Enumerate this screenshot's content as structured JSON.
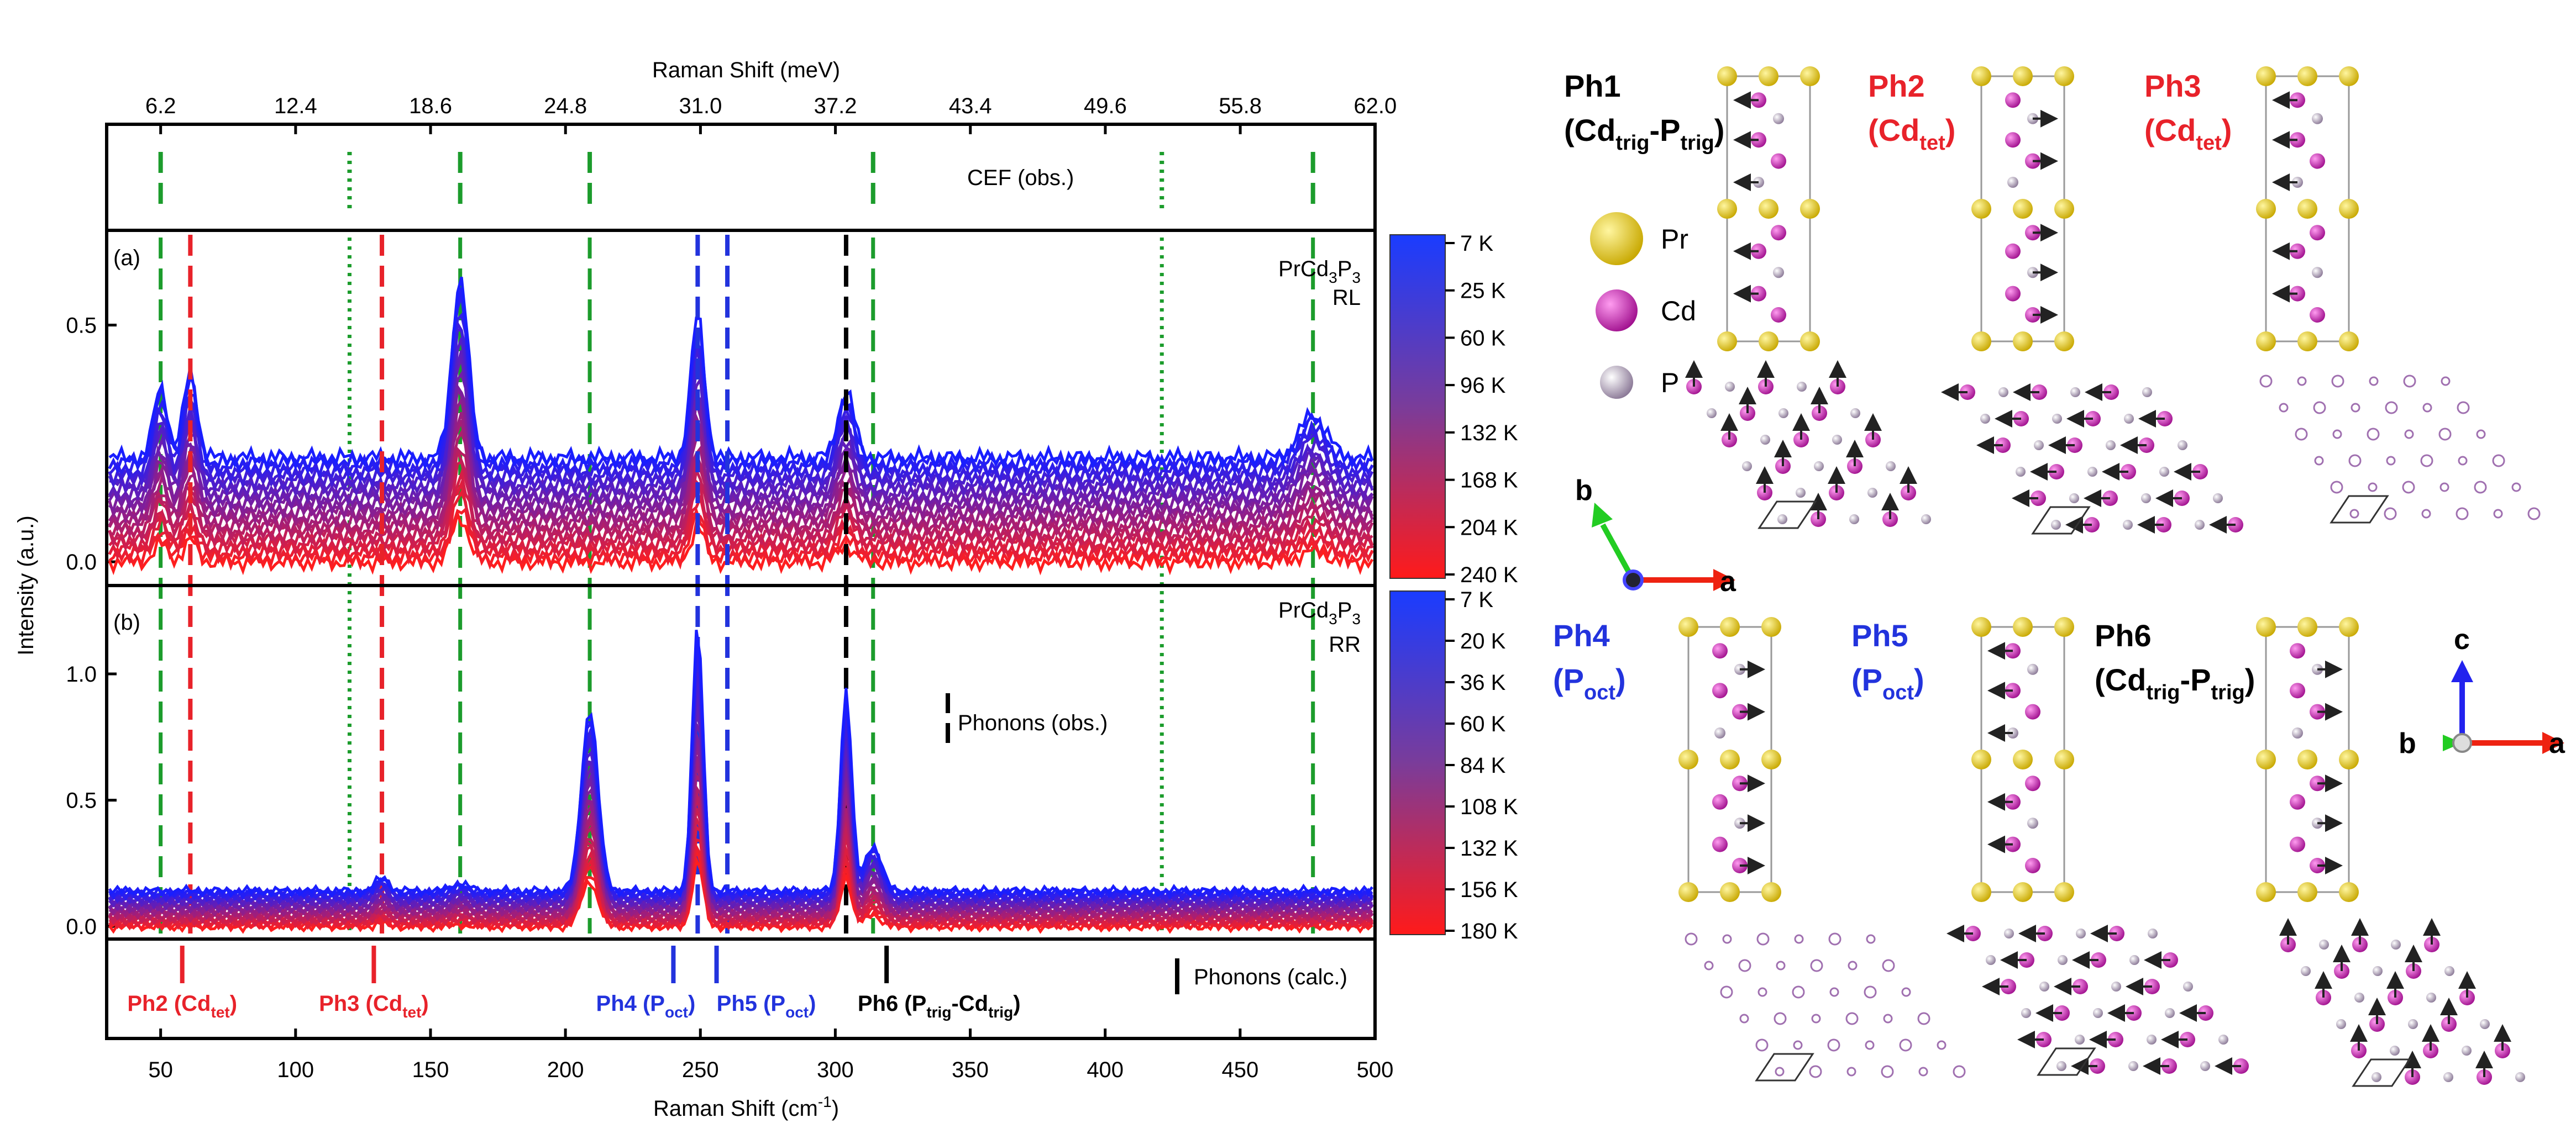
{
  "chart_data": {
    "type": "line",
    "top_axis": {
      "label": "Raman Shift (meV)",
      "ticks": [
        "6.2",
        "12.4",
        "18.6",
        "24.8",
        "31.0",
        "37.2",
        "43.4",
        "49.6",
        "55.8",
        "62.0"
      ]
    },
    "bottom_axis": {
      "label": "Raman Shift (cm",
      "label_sup": "-1",
      "label_end": ")",
      "ticks": [
        50,
        100,
        150,
        200,
        250,
        300,
        350,
        400,
        450,
        500
      ],
      "xlim": [
        30,
        500
      ]
    },
    "ylabel": "Intensity (a.u.)",
    "cef_label": "CEF (obs.)",
    "cef_lines": [
      {
        "x": 50,
        "style": "dashed"
      },
      {
        "x": 120,
        "style": "dotted"
      },
      {
        "x": 161,
        "style": "dashed"
      },
      {
        "x": 209,
        "style": "dashed"
      },
      {
        "x": 314,
        "style": "dashed"
      },
      {
        "x": 421,
        "style": "dotted"
      },
      {
        "x": 477,
        "style": "dashed"
      }
    ],
    "phonon_obs_lines": [
      {
        "x": 61,
        "color": "#e8222a"
      },
      {
        "x": 132,
        "color": "#e8222a"
      },
      {
        "x": 249,
        "color": "#2233dd"
      },
      {
        "x": 260,
        "color": "#2233dd"
      },
      {
        "x": 304,
        "color": "#000000"
      }
    ],
    "panel_a": {
      "tag": "(a)",
      "sample": "PrCd",
      "sample_sub": "3",
      "sample_p": "P",
      "sample_sub2": "3",
      "sample_config": "RL",
      "yticks": [
        "0.0",
        "0.5"
      ],
      "ylim": [
        -0.05,
        0.7
      ],
      "peaks": [
        {
          "x": 50,
          "height": 0.15,
          "width": 2.5
        },
        {
          "x": 61,
          "height": 0.18,
          "width": 2.5
        },
        {
          "x": 161,
          "height": 0.38,
          "width": 3
        },
        {
          "x": 249,
          "height": 0.3,
          "width": 2.5
        },
        {
          "x": 304,
          "height": 0.14,
          "width": 3
        },
        {
          "x": 477,
          "height": 0.09,
          "width": 5
        }
      ],
      "colorbar": {
        "labels": [
          "7 K",
          "25 K",
          "60 K",
          "96 K",
          "132 K",
          "168 K",
          "204 K",
          "240 K"
        ]
      }
    },
    "panel_b": {
      "tag": "(b)",
      "sample": "PrCd",
      "sample_sub": "3",
      "sample_p": "P",
      "sample_sub2": "3",
      "sample_config": "RR",
      "yticks": [
        "0.0",
        "0.5",
        "1.0"
      ],
      "ylim": [
        -0.05,
        1.35
      ],
      "phonon_obs_label": "Phonons (obs.)",
      "peaks": [
        {
          "x": 132,
          "height": 0.05,
          "width": 2.5
        },
        {
          "x": 161,
          "height": 0.03,
          "width": 3
        },
        {
          "x": 209,
          "height": 0.72,
          "width": 3
        },
        {
          "x": 249,
          "height": 1.05,
          "width": 2
        },
        {
          "x": 304,
          "height": 0.8,
          "width": 2
        },
        {
          "x": 314,
          "height": 0.18,
          "width": 3
        }
      ],
      "colorbar": {
        "labels": [
          "7 K",
          "20 K",
          "36 K",
          "60 K",
          "84 K",
          "108 K",
          "132 K",
          "156 K",
          "180 K"
        ]
      }
    },
    "calc_panel": {
      "label": "Phonons (calc.)",
      "lines": [
        {
          "x": 58,
          "color": "#e8222a"
        },
        {
          "x": 129,
          "color": "#e8222a"
        },
        {
          "x": 240,
          "color": "#2233dd"
        },
        {
          "x": 256,
          "color": "#2233dd"
        },
        {
          "x": 319,
          "color": "#000000"
        }
      ],
      "labels": [
        {
          "x": 58,
          "color": "#e8222a",
          "main": "Ph2 (Cd",
          "sub": "tet",
          "end": ")"
        },
        {
          "x": 129,
          "color": "#e8222a",
          "main": "Ph3 (Cd",
          "sub": "tet",
          "end": ")"
        },
        {
          "x": 240,
          "color": "#2233dd",
          "main": "Ph4 (P",
          "sub": "oct",
          "end": ")"
        },
        {
          "x": 256,
          "color": "#2233dd",
          "main": "Ph5 (P",
          "sub": "oct",
          "end": ")"
        },
        {
          "x": 319,
          "color": "#000000",
          "main": "Ph6 (P",
          "sub": "trig",
          "mid": "-Cd",
          "sub2": "trig",
          "end": ")"
        }
      ]
    }
  },
  "structures": {
    "legend": [
      {
        "label": "Pr",
        "color": "#e8cf2a"
      },
      {
        "label": "Cd",
        "color": "#d628c4"
      },
      {
        "label": "P",
        "color": "#b8a3c0"
      }
    ],
    "modes": [
      {
        "id": "Ph1",
        "el": "Cd",
        "sub": "trig",
        "mid": "-P",
        "sub2": "trig",
        "color": "#000000"
      },
      {
        "id": "Ph2",
        "el": "Cd",
        "sub": "tet",
        "color": "#e8222a"
      },
      {
        "id": "Ph3",
        "el": "Cd",
        "sub": "tet",
        "color": "#e8222a"
      },
      {
        "id": "Ph4",
        "el": "P",
        "sub": "oct",
        "color": "#2233dd"
      },
      {
        "id": "Ph5",
        "el": "P",
        "sub": "oct",
        "color": "#2233dd"
      },
      {
        "id": "Ph6",
        "el": "Cd",
        "sub": "trig",
        "mid": "-P",
        "sub2": "trig",
        "color": "#000000"
      }
    ],
    "axes_ba": {
      "b": "b",
      "a": "a"
    },
    "axes_cba": {
      "c": "c",
      "b": "b",
      "a": "a"
    }
  }
}
